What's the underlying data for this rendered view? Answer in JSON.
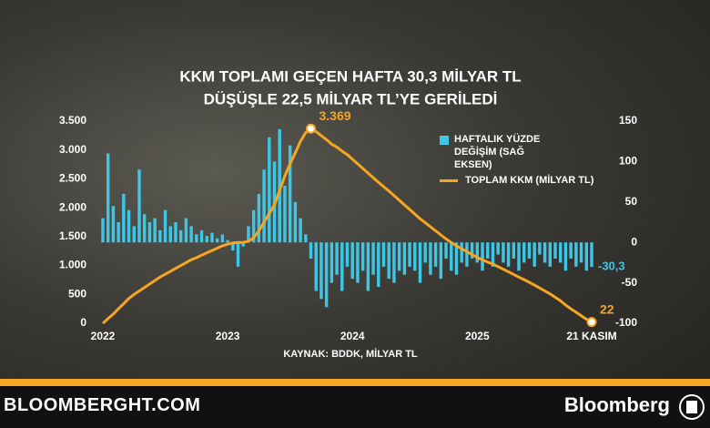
{
  "chart_data": {
    "type": "bar-line",
    "title": [
      "KKM TOPLAMI GEÇEN HAFTA 30,3 MİLYAR TL",
      "DÜŞÜŞLE 22,5 MİLYAR TL’YE GERİLEDİ"
    ],
    "source": "KAYNAK: BDDK, MİLYAR TL",
    "footer_left": "BLOOMBERGHT.COM",
    "footer_right": "Bloomberg",
    "xlim": [
      0,
      94
    ],
    "xticks": [
      {
        "value": 0,
        "label": "2022"
      },
      {
        "value": 24,
        "label": "2023"
      },
      {
        "value": 48,
        "label": "2024"
      },
      {
        "value": 72,
        "label": "2025"
      },
      {
        "value": 94,
        "label": "21 KASIM"
      }
    ],
    "ylim": [
      0,
      3500
    ],
    "yticks": [
      0,
      500,
      {
        "value": 1000,
        "label": "1.000"
      },
      {
        "value": 1500,
        "label": "1.500"
      },
      {
        "value": 2000,
        "label": "2.000"
      },
      {
        "value": 2500,
        "label": "2.500"
      },
      {
        "value": 3000,
        "label": "3.000"
      },
      {
        "value": 3500,
        "label": "3.500"
      }
    ],
    "y2lim": [
      -100,
      150
    ],
    "y2ticks": [
      -100,
      -50,
      0,
      50,
      100,
      150
    ],
    "series": [
      {
        "name": "HAFTALIK YÜZDE DEĞİŞİM (SAĞ EKSEN)",
        "type": "bar",
        "axis": "y2",
        "color": "#3ec6e6",
        "values": [
          30,
          110,
          45,
          25,
          60,
          40,
          20,
          90,
          35,
          25,
          30,
          15,
          40,
          20,
          25,
          15,
          30,
          20,
          10,
          15,
          8,
          12,
          5,
          10,
          3,
          -10,
          -30,
          -5,
          20,
          40,
          60,
          90,
          130,
          100,
          140,
          70,
          120,
          50,
          30,
          10,
          -20,
          -60,
          -70,
          -80,
          -50,
          -40,
          -60,
          -30,
          -45,
          -50,
          -35,
          -60,
          -40,
          -55,
          -30,
          -45,
          -50,
          -35,
          -40,
          -30,
          -35,
          -50,
          -25,
          -40,
          -30,
          -45,
          -20,
          -35,
          -40,
          -25,
          -30,
          -20,
          -25,
          -35,
          -20,
          -30,
          -15,
          -25,
          -30,
          -20,
          -35,
          -25,
          -20,
          -30,
          -15,
          -25,
          -30,
          -20,
          -25,
          -35,
          -20,
          -30,
          -25,
          -35,
          -30.3
        ],
        "value_labels": [
          null,
          null,
          null,
          null,
          null,
          null,
          null,
          null,
          null,
          null,
          null,
          null,
          null,
          null,
          null,
          null,
          null,
          null,
          null,
          null,
          null,
          null,
          null,
          null,
          null,
          null,
          null,
          null,
          null,
          null,
          null,
          null,
          null,
          null,
          null,
          null,
          null,
          null,
          null,
          null,
          null,
          null,
          null,
          null,
          null,
          null,
          null,
          null,
          null,
          null,
          null,
          null,
          null,
          null,
          null,
          null,
          null,
          null,
          null,
          null,
          null,
          null,
          null,
          null,
          null,
          null,
          null,
          null,
          null,
          null,
          null,
          null,
          null,
          null,
          null,
          null,
          null,
          null,
          null,
          null,
          null,
          null,
          null,
          null,
          null,
          null,
          null,
          null,
          null,
          null,
          null,
          null,
          null,
          null,
          "-30,3"
        ]
      },
      {
        "name": "TOPLAM KKM (MİLYAR TL)",
        "type": "line",
        "color": "#f5a623",
        "values": [
          0,
          80,
          160,
          250,
          340,
          430,
          500,
          560,
          620,
          680,
          740,
          800,
          850,
          900,
          950,
          1000,
          1050,
          1100,
          1135,
          1180,
          1220,
          1260,
          1300,
          1340,
          1370,
          1390,
          1400,
          1400,
          1420,
          1480,
          1600,
          1750,
          1900,
          2050,
          2300,
          2550,
          2760,
          2950,
          3150,
          3300,
          3369,
          3320,
          3250,
          3180,
          3100,
          3050,
          2980,
          2920,
          2840,
          2760,
          2680,
          2600,
          2520,
          2440,
          2365,
          2290,
          2210,
          2130,
          2050,
          1970,
          1890,
          1810,
          1740,
          1670,
          1600,
          1530,
          1460,
          1400,
          1340,
          1290,
          1240,
          1190,
          1140,
          1100,
          1060,
          1025,
          980,
          935,
          890,
          845,
          800,
          755,
          710,
          660,
          610,
          560,
          510,
          450,
          390,
          315,
          250,
          190,
          130,
          70,
          22
        ],
        "value_labels": [
          null,
          null,
          null,
          null,
          null,
          null,
          null,
          null,
          null,
          null,
          null,
          null,
          null,
          null,
          null,
          null,
          null,
          null,
          null,
          null,
          null,
          null,
          null,
          null,
          null,
          null,
          null,
          null,
          null,
          null,
          null,
          null,
          null,
          null,
          null,
          null,
          null,
          null,
          null,
          null,
          "3.369",
          null,
          null,
          null,
          null,
          null,
          null,
          null,
          null,
          null,
          null,
          null,
          null,
          null,
          null,
          null,
          null,
          null,
          null,
          null,
          null,
          null,
          null,
          null,
          null,
          null,
          null,
          null,
          null,
          null,
          null,
          null,
          null,
          null,
          null,
          null,
          null,
          null,
          null,
          null,
          null,
          null,
          null,
          null,
          null,
          null,
          null,
          null,
          null,
          null,
          null,
          null,
          null,
          null,
          "22"
        ]
      }
    ]
  }
}
